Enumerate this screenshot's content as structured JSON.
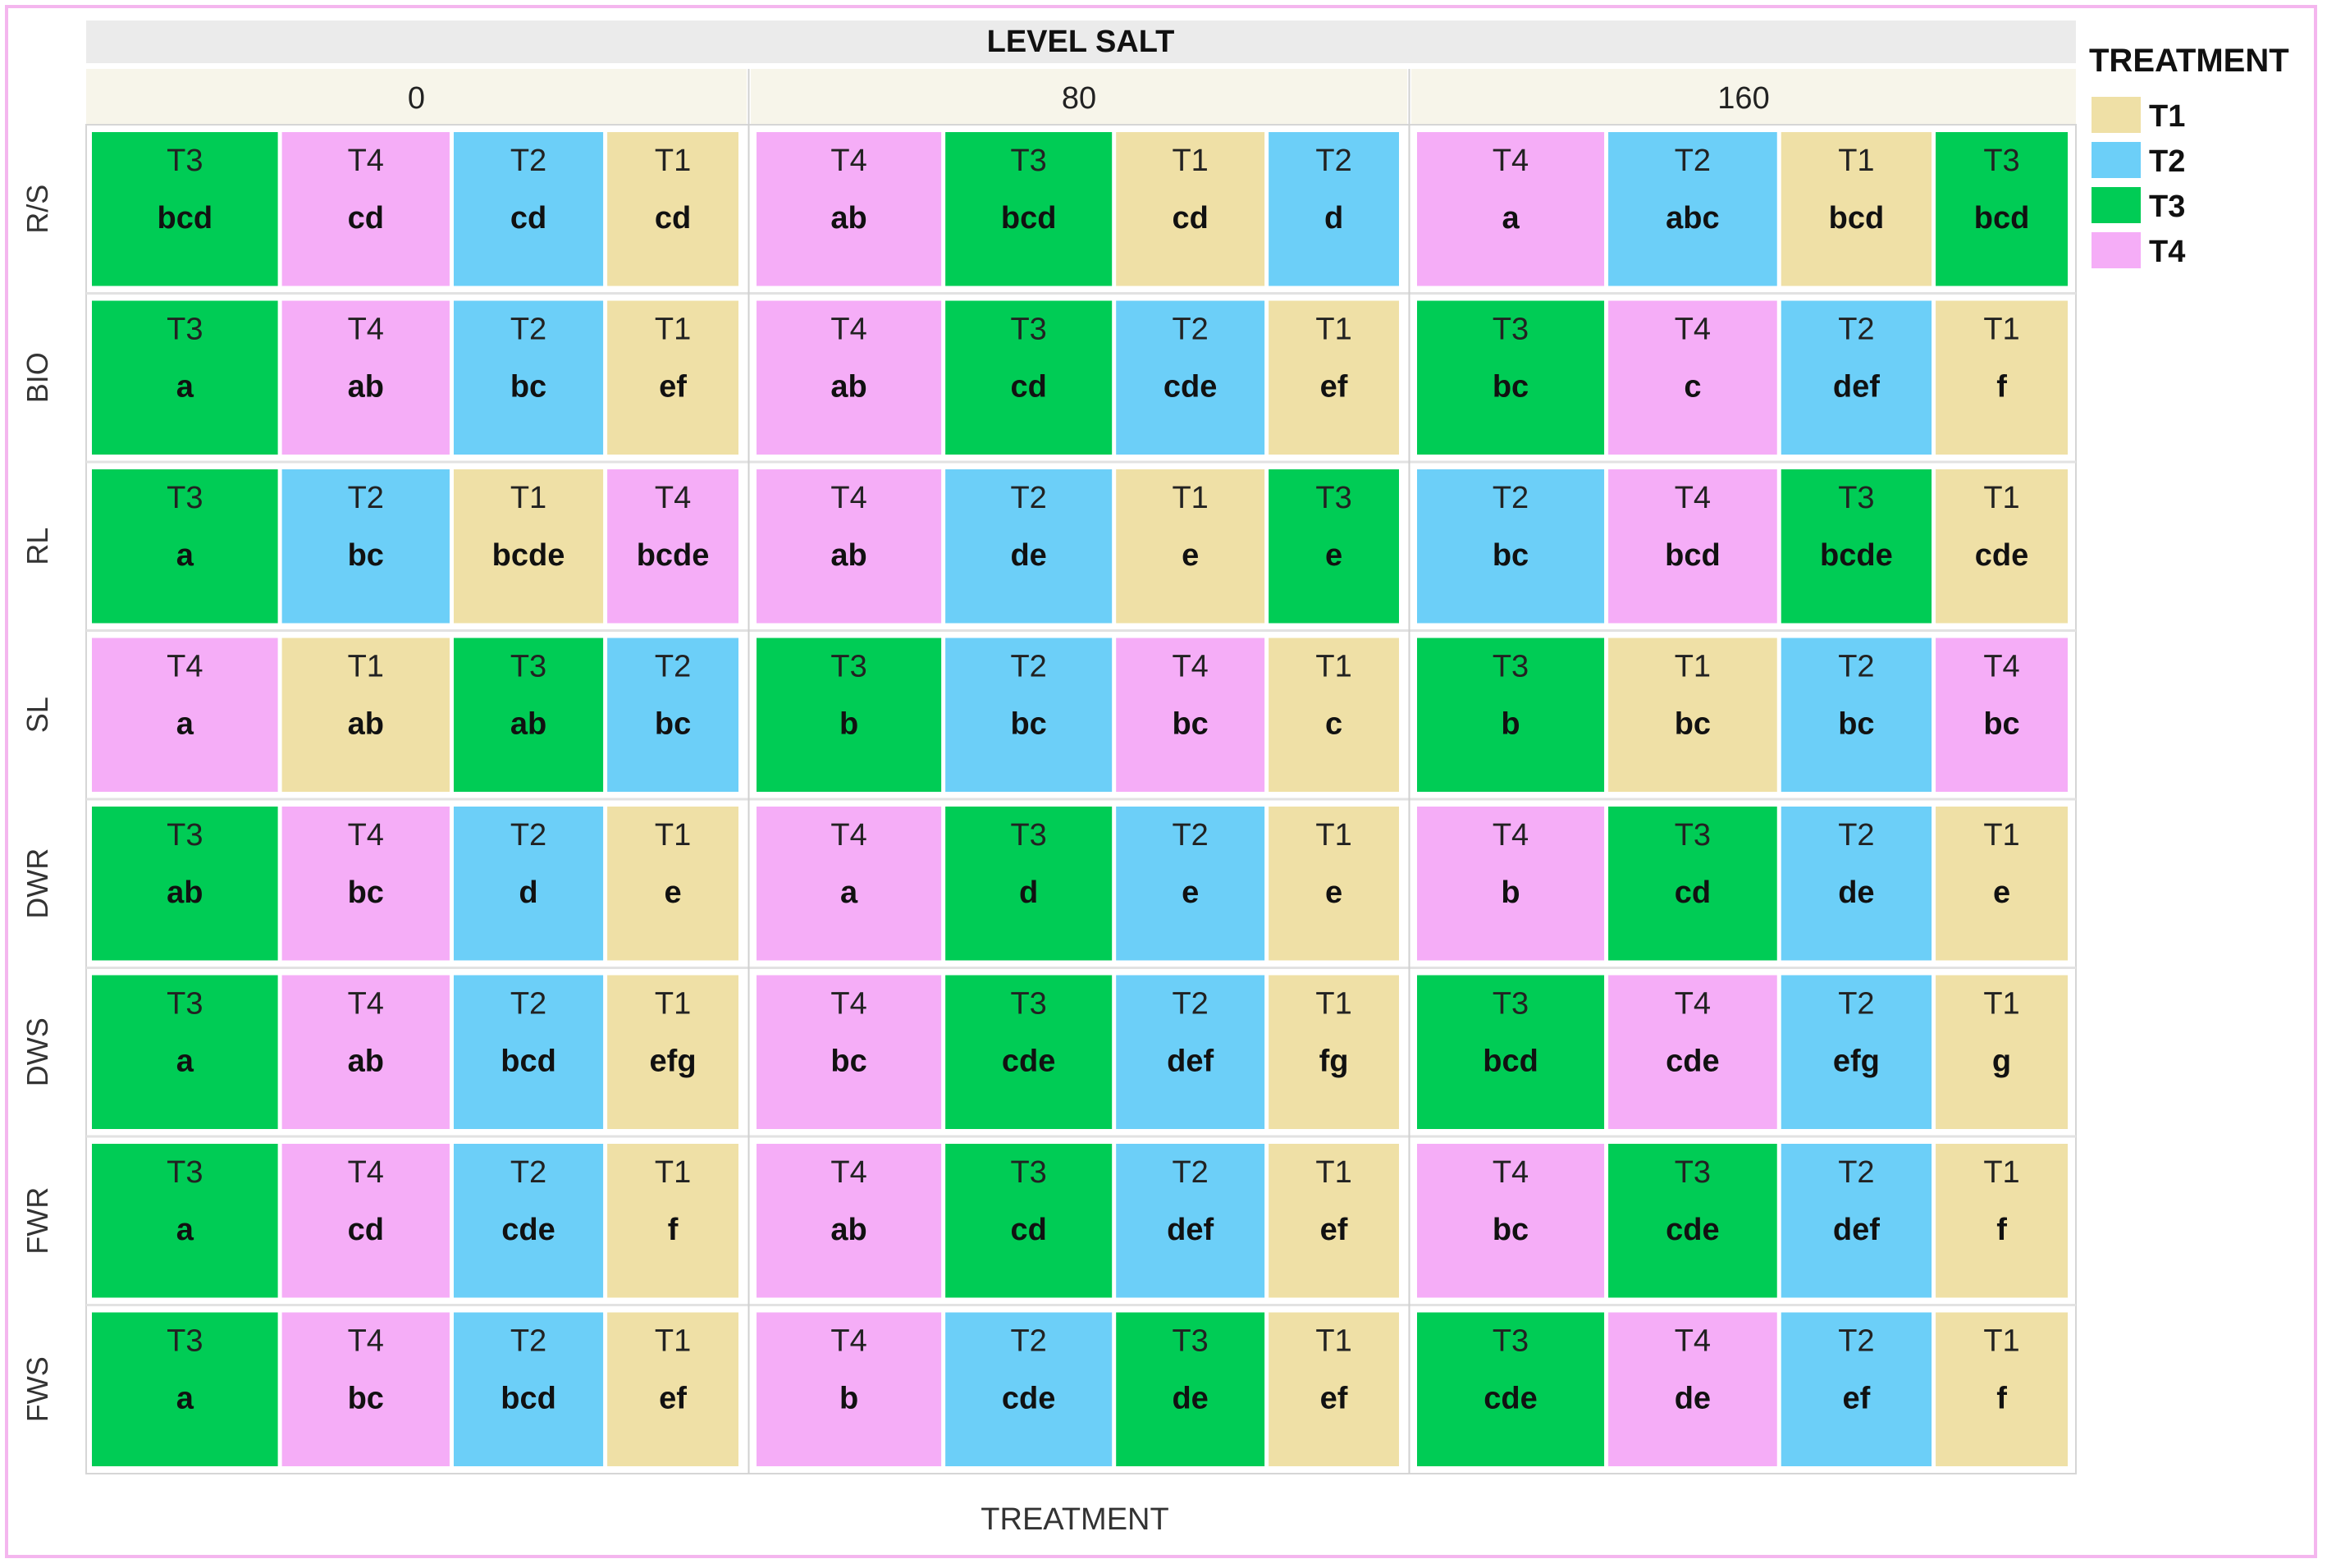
{
  "chart_data": {
    "type": "treemap-grid",
    "header": "LEVEL SALT",
    "xlabel": "TREATMENT",
    "columns": [
      "0",
      "80",
      "160"
    ],
    "rows": [
      "R/S",
      "BIO",
      "RL",
      "SL",
      "DWR",
      "DWS",
      "FWR",
      "FWS"
    ],
    "legend": {
      "title": "TREATMENT",
      "position": "top-right",
      "items": [
        {
          "name": "T1",
          "color": "#efe0a6"
        },
        {
          "name": "T2",
          "color": "#6ccff8"
        },
        {
          "name": "T3",
          "color": "#00cc55"
        },
        {
          "name": "T4",
          "color": "#f5adf7"
        }
      ]
    },
    "cells": [
      [
        [
          {
            "t": "T3",
            "g": "bcd"
          },
          {
            "t": "T4",
            "g": "cd"
          },
          {
            "t": "T2",
            "g": "cd"
          },
          {
            "t": "T1",
            "g": "cd"
          }
        ],
        [
          {
            "t": "T4",
            "g": "ab"
          },
          {
            "t": "T3",
            "g": "bcd"
          },
          {
            "t": "T1",
            "g": "cd"
          },
          {
            "t": "T2",
            "g": "d"
          }
        ],
        [
          {
            "t": "T4",
            "g": "a"
          },
          {
            "t": "T2",
            "g": "abc"
          },
          {
            "t": "T1",
            "g": "bcd"
          },
          {
            "t": "T3",
            "g": "bcd"
          }
        ]
      ],
      [
        [
          {
            "t": "T3",
            "g": "a"
          },
          {
            "t": "T4",
            "g": "ab"
          },
          {
            "t": "T2",
            "g": "bc"
          },
          {
            "t": "T1",
            "g": "ef"
          }
        ],
        [
          {
            "t": "T4",
            "g": "ab"
          },
          {
            "t": "T3",
            "g": "cd"
          },
          {
            "t": "T2",
            "g": "cde"
          },
          {
            "t": "T1",
            "g": "ef"
          }
        ],
        [
          {
            "t": "T3",
            "g": "bc"
          },
          {
            "t": "T4",
            "g": "c"
          },
          {
            "t": "T2",
            "g": "def"
          },
          {
            "t": "T1",
            "g": "f"
          }
        ]
      ],
      [
        [
          {
            "t": "T3",
            "g": "a"
          },
          {
            "t": "T2",
            "g": "bc"
          },
          {
            "t": "T1",
            "g": "bcde"
          },
          {
            "t": "T4",
            "g": "bcde"
          }
        ],
        [
          {
            "t": "T4",
            "g": "ab"
          },
          {
            "t": "T2",
            "g": "de"
          },
          {
            "t": "T1",
            "g": "e"
          },
          {
            "t": "T3",
            "g": "e"
          }
        ],
        [
          {
            "t": "T2",
            "g": "bc"
          },
          {
            "t": "T4",
            "g": "bcd"
          },
          {
            "t": "T3",
            "g": "bcde"
          },
          {
            "t": "T1",
            "g": "cde"
          }
        ]
      ],
      [
        [
          {
            "t": "T4",
            "g": "a"
          },
          {
            "t": "T1",
            "g": "ab"
          },
          {
            "t": "T3",
            "g": "ab"
          },
          {
            "t": "T2",
            "g": "bc"
          }
        ],
        [
          {
            "t": "T3",
            "g": "b"
          },
          {
            "t": "T2",
            "g": "bc"
          },
          {
            "t": "T4",
            "g": "bc"
          },
          {
            "t": "T1",
            "g": "c"
          }
        ],
        [
          {
            "t": "T3",
            "g": "b"
          },
          {
            "t": "T1",
            "g": "bc"
          },
          {
            "t": "T2",
            "g": "bc"
          },
          {
            "t": "T4",
            "g": "bc"
          }
        ]
      ],
      [
        [
          {
            "t": "T3",
            "g": "ab"
          },
          {
            "t": "T4",
            "g": "bc"
          },
          {
            "t": "T2",
            "g": "d"
          },
          {
            "t": "T1",
            "g": "e"
          }
        ],
        [
          {
            "t": "T4",
            "g": "a"
          },
          {
            "t": "T3",
            "g": "d"
          },
          {
            "t": "T2",
            "g": "e"
          },
          {
            "t": "T1",
            "g": "e"
          }
        ],
        [
          {
            "t": "T4",
            "g": "b"
          },
          {
            "t": "T3",
            "g": "cd"
          },
          {
            "t": "T2",
            "g": "de"
          },
          {
            "t": "T1",
            "g": "e"
          }
        ]
      ],
      [
        [
          {
            "t": "T3",
            "g": "a"
          },
          {
            "t": "T4",
            "g": "ab"
          },
          {
            "t": "T2",
            "g": "bcd"
          },
          {
            "t": "T1",
            "g": "efg"
          }
        ],
        [
          {
            "t": "T4",
            "g": "bc"
          },
          {
            "t": "T3",
            "g": "cde"
          },
          {
            "t": "T2",
            "g": "def"
          },
          {
            "t": "T1",
            "g": "fg"
          }
        ],
        [
          {
            "t": "T3",
            "g": "bcd"
          },
          {
            "t": "T4",
            "g": "cde"
          },
          {
            "t": "T2",
            "g": "efg"
          },
          {
            "t": "T1",
            "g": "g"
          }
        ]
      ],
      [
        [
          {
            "t": "T3",
            "g": "a"
          },
          {
            "t": "T4",
            "g": "cd"
          },
          {
            "t": "T2",
            "g": "cde"
          },
          {
            "t": "T1",
            "g": "f"
          }
        ],
        [
          {
            "t": "T4",
            "g": "ab"
          },
          {
            "t": "T3",
            "g": "cd"
          },
          {
            "t": "T2",
            "g": "def"
          },
          {
            "t": "T1",
            "g": "ef"
          }
        ],
        [
          {
            "t": "T4",
            "g": "bc"
          },
          {
            "t": "T3",
            "g": "cde"
          },
          {
            "t": "T2",
            "g": "def"
          },
          {
            "t": "T1",
            "g": "f"
          }
        ]
      ],
      [
        [
          {
            "t": "T3",
            "g": "a"
          },
          {
            "t": "T4",
            "g": "bc"
          },
          {
            "t": "T2",
            "g": "bcd"
          },
          {
            "t": "T1",
            "g": "ef"
          }
        ],
        [
          {
            "t": "T4",
            "g": "b"
          },
          {
            "t": "T2",
            "g": "cde"
          },
          {
            "t": "T3",
            "g": "de"
          },
          {
            "t": "T1",
            "g": "ef"
          }
        ],
        [
          {
            "t": "T3",
            "g": "cde"
          },
          {
            "t": "T4",
            "g": "de"
          },
          {
            "t": "T2",
            "g": "ef"
          },
          {
            "t": "T1",
            "g": "f"
          }
        ]
      ]
    ]
  }
}
